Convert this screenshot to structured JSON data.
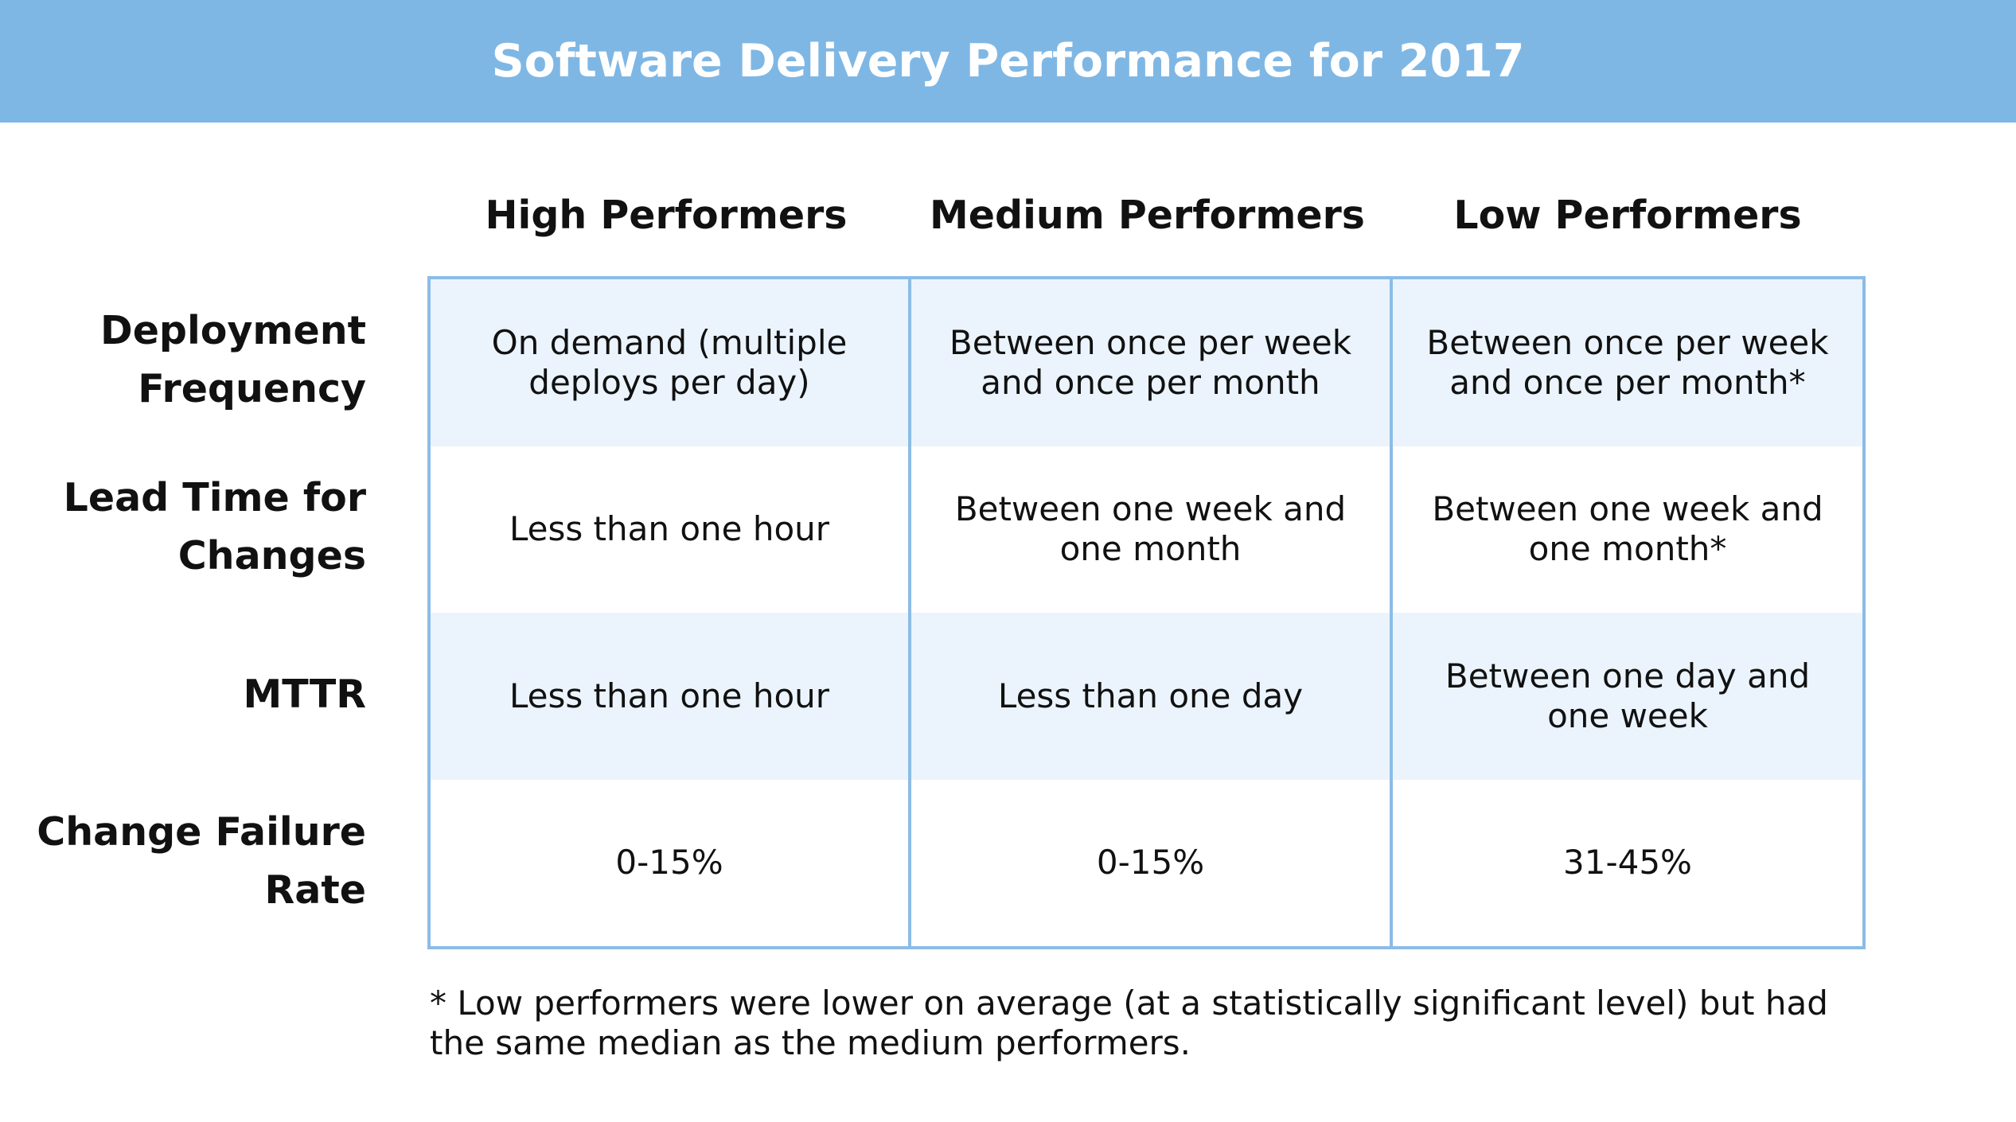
{
  "title": "Software Delivery Performance for 2017",
  "columns": [
    "High Performers",
    "Medium Performers",
    "Low Performers"
  ],
  "rows": [
    {
      "label_lines": [
        "Deployment",
        "Frequency"
      ],
      "cells": [
        [
          "On demand (multiple",
          "deploys per day)"
        ],
        [
          "Between once per week",
          "and once per month"
        ],
        [
          "Between once per week",
          "and once per month*"
        ]
      ]
    },
    {
      "label_lines": [
        "Lead Time for",
        "Changes"
      ],
      "cells": [
        [
          "Less than one hour"
        ],
        [
          "Between one week and",
          "one month"
        ],
        [
          "Between one week and",
          "one month*"
        ]
      ]
    },
    {
      "label_lines": [
        "MTTR"
      ],
      "cells": [
        [
          "Less than one hour"
        ],
        [
          "Less than one day"
        ],
        [
          "Between one day and",
          "one week"
        ]
      ]
    },
    {
      "label_lines": [
        "Change Failure",
        "Rate"
      ],
      "cells": [
        [
          "0-15%"
        ],
        [
          "0-15%"
        ],
        [
          "31-45%"
        ]
      ]
    }
  ],
  "footnote_lines": [
    "* Low performers were lower on average (at a statistically significant level) but had",
    "the same median as the medium performers."
  ],
  "colors": {
    "title_bar": "#7fb7e4",
    "grid_border": "#8cbce6",
    "shaded_row": "#ebf4fd",
    "text": "#111111"
  }
}
